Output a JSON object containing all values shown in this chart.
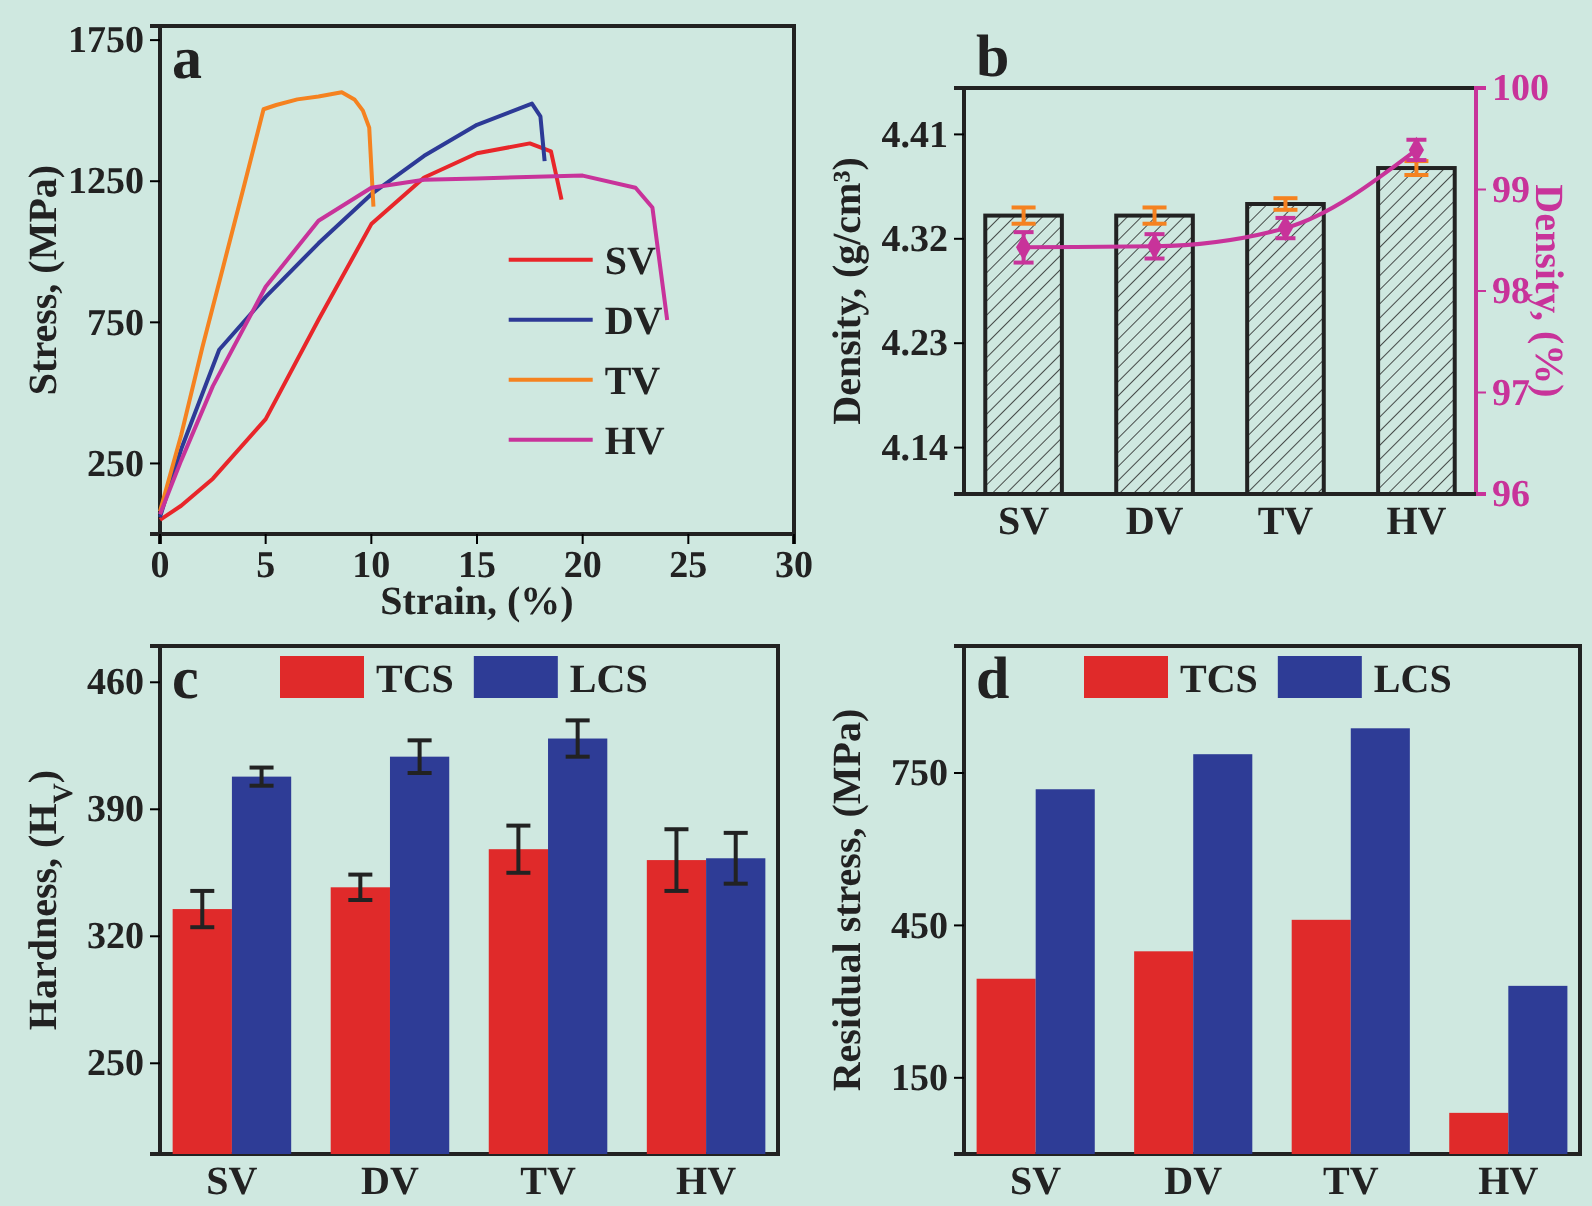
{
  "chart_data": [
    {
      "type": "line",
      "title": "a",
      "xlabel": "Strain, (%)",
      "ylabel": "Stress, (MPa)",
      "xlim": [
        0,
        30
      ],
      "xticks": [
        0,
        5,
        10,
        15,
        20,
        25,
        30
      ],
      "ylim": [
        0,
        1800
      ],
      "yticks": [
        250,
        750,
        1250,
        1750
      ],
      "legend": "right",
      "series": [
        {
          "name": "SV",
          "color": "#e8262a",
          "x": [
            0,
            1,
            2.5,
            5,
            7.5,
            10,
            12.5,
            15,
            17.5,
            18.5,
            19
          ],
          "values": [
            50,
            100,
            196,
            407,
            759,
            1098,
            1263,
            1349,
            1384,
            1356,
            1185
          ]
        },
        {
          "name": "DV",
          "color": "#2d3a96",
          "x": [
            0,
            1,
            2.8,
            5,
            7.5,
            10,
            12.5,
            15,
            17.6,
            18,
            18.2
          ],
          "values": [
            60,
            300,
            653,
            840,
            1030,
            1204,
            1340,
            1450,
            1525,
            1480,
            1321
          ]
        },
        {
          "name": "TV",
          "color": "#f58220",
          "x": [
            0,
            1,
            2,
            3,
            4,
            4.9,
            5.5,
            6.5,
            7.5,
            8.6,
            9.2,
            9.6,
            9.9,
            10.1
          ],
          "values": [
            80,
            350,
            660,
            950,
            1240,
            1505,
            1520,
            1540,
            1550,
            1565,
            1540,
            1500,
            1440,
            1160
          ]
        },
        {
          "name": "HV",
          "color": "#c8339a",
          "x": [
            0,
            1,
            2.5,
            5,
            7.5,
            10,
            12.5,
            15,
            20,
            22.5,
            23.3,
            24
          ],
          "values": [
            70,
            260,
            524,
            876,
            1110,
            1227,
            1255,
            1260,
            1270,
            1227,
            1157,
            758
          ]
        }
      ]
    },
    {
      "type": "bar",
      "title": "b",
      "ylabel": "Density, (g/cm³)",
      "y2label": "Density, (%)",
      "categories": [
        "SV",
        "DV",
        "TV",
        "HV"
      ],
      "ylim": [
        4.1,
        4.45
      ],
      "yticks": [
        4.14,
        4.23,
        4.32,
        4.41
      ],
      "y2lim": [
        96,
        100
      ],
      "y2ticks": [
        96,
        97,
        98,
        99,
        100
      ],
      "series": [
        {
          "color": "#222222",
          "values": [
            4.34,
            4.34,
            4.35,
            4.381
          ],
          "errors": [
            0.007,
            0.007,
            0.005,
            0.006
          ]
        },
        {
          "type": "line",
          "axis": "y2",
          "color": "#c8339a",
          "marker": "diamond",
          "values": [
            98.43,
            98.44,
            98.62,
            99.39
          ],
          "errors": [
            0.15,
            0.12,
            0.1,
            0.1
          ]
        }
      ]
    },
    {
      "type": "bar",
      "title": "c",
      "ylabel": "Hardness, (H$_{V}$)",
      "categories": [
        "SV",
        "DV",
        "TV",
        "HV"
      ],
      "ylim": [
        200,
        480
      ],
      "yticks": [
        250,
        320,
        390,
        460
      ],
      "legend": "top",
      "series": [
        {
          "name": "TCS",
          "color": "#e02a2a",
          "values": [
            335,
            347,
            368,
            362
          ],
          "errors": [
            10,
            7,
            13,
            17
          ]
        },
        {
          "name": "LCS",
          "color": "#2e3c96",
          "values": [
            408,
            419,
            429,
            363
          ],
          "errors": [
            5,
            9,
            10,
            14
          ]
        }
      ]
    },
    {
      "type": "bar",
      "title": "d",
      "ylabel": "Residual stress, (MPa)",
      "categories": [
        "SV",
        "DV",
        "TV",
        "HV"
      ],
      "ylim": [
        0,
        1000
      ],
      "yticks": [
        150,
        450,
        750
      ],
      "legend": "top",
      "series": [
        {
          "name": "TCS",
          "color": "#e02a2a",
          "values": [
            345,
            399,
            461,
            81
          ]
        },
        {
          "name": "LCS",
          "color": "#2e3c96",
          "values": [
            718,
            787,
            838,
            331
          ]
        }
      ]
    }
  ]
}
